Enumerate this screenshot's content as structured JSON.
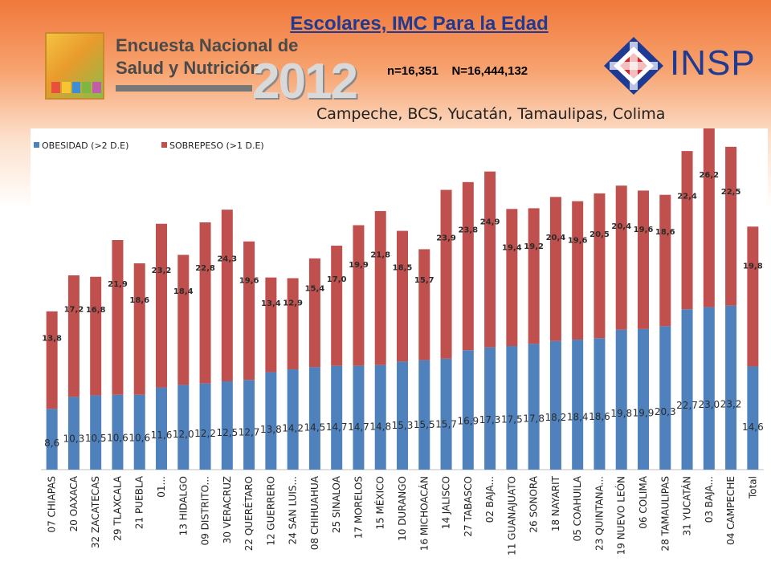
{
  "header": {
    "title": "Escolares, IMC Para la Edad",
    "sample_info": "n=16,351    N=16,444,132",
    "ensanut_line1": "Encuesta Nacional de",
    "ensanut_line2": "Salud y Nutrición",
    "ensanut_year": "2012",
    "insp_label": "INSP"
  },
  "colors": {
    "obesidad": "#4f81bd",
    "sobrepeso": "#c0504d",
    "title": "#1f3a93",
    "background_top": "#f0783a"
  },
  "chart_data": {
    "type": "bar",
    "stacked": true,
    "title": "Campeche, BCS, Yucatán, Tamaulipas, Colima",
    "legend_position": "top-left",
    "grid": false,
    "categories": [
      "07 CHIAPAS",
      "20 OAXACA",
      "32 ZACATECAS",
      "29 TLAXCALA",
      "21 PUEBLA",
      "01...",
      "13 HIDALGO",
      "09 DISTRITO...",
      "30 VERACRUZ",
      "22 QUERÉTARO",
      "12 GUERRERO",
      "24 SAN LUIS...",
      "08 CHIHUAHUA",
      "25 SINALOA",
      "17 MORELOS",
      "15 MÉXICO",
      "10 DURANGO",
      "16 MICHOACÁN",
      "14 JALISCO",
      "27 TABASCO",
      "02 BAJA...",
      "11 GUANAJUATO",
      "26 SONORA",
      "18 NAYARIT",
      "05 COAHUILA",
      "23 QUINTANA...",
      "19 NUEVO LEÓN",
      "06 COLIMA",
      "28 TAMAULIPAS",
      "31 YUCATÁN",
      "03 BAJA...",
      "04 CAMPECHE",
      "Total"
    ],
    "series": [
      {
        "name": "OBESIDAD (>2 D.E)",
        "values": [
          8.6,
          10.3,
          10.5,
          10.6,
          10.6,
          11.6,
          12.0,
          12.2,
          12.5,
          12.7,
          13.8,
          14.2,
          14.5,
          14.7,
          14.7,
          14.8,
          15.3,
          15.5,
          15.7,
          16.9,
          17.3,
          17.5,
          17.8,
          18.2,
          18.4,
          18.6,
          19.8,
          19.9,
          20.3,
          22.7,
          23.0,
          23.2,
          14.6
        ],
        "labels": [
          "8,6",
          "10,3",
          "10,5",
          "10,6",
          "10,6",
          "11,6",
          "12,0",
          "12,2",
          "12,5",
          "12,7",
          "13,8",
          "14,2",
          "14,5",
          "14,7",
          "14,7",
          "14,8",
          "15,3",
          "15,5",
          "15,7",
          "16,9",
          "17,3",
          "17,5",
          "17,8",
          "18,2",
          "18,4",
          "18,6",
          "19,8",
          "19,9",
          "20,3",
          "22,7",
          "23,0",
          "23,2",
          "14,6"
        ]
      },
      {
        "name": "SOBREPESO (>1 D.E)",
        "values": [
          13.8,
          17.2,
          16.8,
          21.9,
          18.6,
          23.2,
          18.4,
          22.8,
          24.3,
          19.6,
          13.4,
          12.9,
          15.4,
          17.0,
          19.9,
          21.8,
          18.5,
          15.7,
          23.9,
          23.8,
          24.9,
          19.4,
          19.2,
          20.4,
          19.6,
          20.5,
          20.4,
          19.6,
          18.6,
          22.4,
          26.2,
          22.5,
          19.8
        ],
        "labels": [
          "13,8",
          "17,2",
          "16,8",
          "21,9",
          "18,6",
          "23,2",
          "18,4",
          "22,8",
          "24,3",
          "19,6",
          "13,4",
          "12,9",
          "15,4",
          "17,0",
          "19,9",
          "21,8",
          "18,5",
          "15,7",
          "23,9",
          "23,8",
          "24,9",
          "19,4",
          "19,2",
          "20,4",
          "19,6",
          "20,5",
          "20,4",
          "19,6",
          "18,6",
          "22,4",
          "26,2",
          "22,5",
          "19,8"
        ]
      }
    ],
    "ylim": [
      0,
      50
    ]
  }
}
